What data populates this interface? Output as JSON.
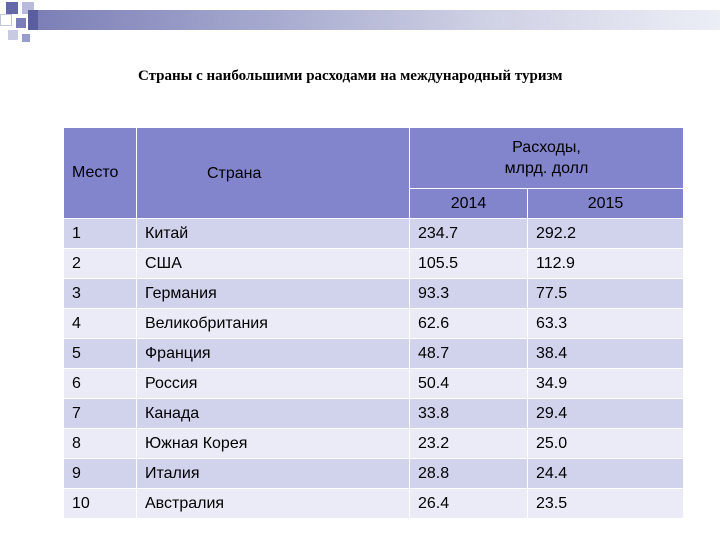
{
  "slide": {
    "title": "Страны с наибольшими расходами на международный туризм"
  },
  "table": {
    "headers": {
      "place": "Место",
      "country": "Страна",
      "spending": "Расходы,\nмлрд. долл",
      "year_2014": "2014",
      "year_2015": "2015"
    },
    "rows": [
      {
        "place": "1",
        "country": "Китай",
        "y2014": "234.7",
        "y2015": "292.2"
      },
      {
        "place": "2",
        "country": "США",
        "y2014": "105.5",
        "y2015": "112.9"
      },
      {
        "place": "3",
        "country": "Германия",
        "y2014": "93.3",
        "y2015": "77.5"
      },
      {
        "place": "4",
        "country": "Великобритания",
        "y2014": "62.6",
        "y2015": "63.3"
      },
      {
        "place": "5",
        "country": "Франция",
        "y2014": "48.7",
        "y2015": "38.4"
      },
      {
        "place": "6",
        "country": "Россия",
        "y2014": "50.4",
        "y2015": "34.9"
      },
      {
        "place": "7",
        "country": "Канада",
        "y2014": "33.8",
        "y2015": "29.4"
      },
      {
        "place": "8",
        "country": "Южная Корея",
        "y2014": "23.2",
        "y2015": "25.0"
      },
      {
        "place": "9",
        "country": "Италия",
        "y2014": "28.8",
        "y2015": "24.4"
      },
      {
        "place": "10",
        "country": "Австралия",
        "y2014": "26.4",
        "y2015": "23.5"
      }
    ]
  },
  "colors": {
    "header_bg": "#8385cc",
    "row_odd_bg": "#d1d3ec",
    "row_even_bg": "#eaebf7",
    "deco_dark": "#5a5e9e",
    "deco_light": "#aeb1d6"
  }
}
